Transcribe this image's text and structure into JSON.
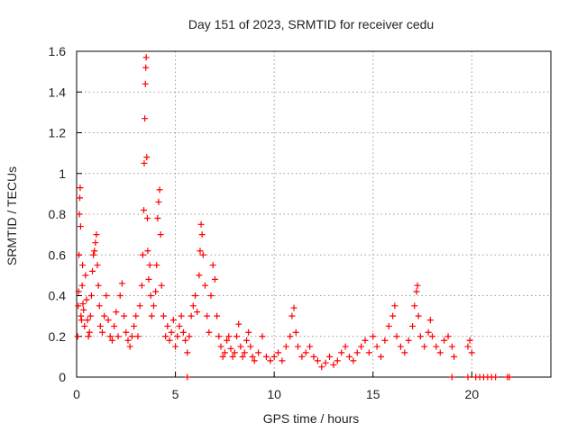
{
  "chart_data": {
    "type": "scatter",
    "title": "Day 151 of 2023, SRMTID for receiver cedu",
    "xlabel": "GPS time / hours",
    "ylabel": "SRMTID / TECUs",
    "xlim": [
      0,
      24
    ],
    "ylim": [
      0,
      1.6
    ],
    "xticks": [
      0,
      5,
      10,
      15,
      20
    ],
    "yticks": [
      0,
      0.2,
      0.4,
      0.6,
      0.8,
      1,
      1.2,
      1.4,
      1.6
    ],
    "xtick_labels": [
      "0",
      "5",
      "10",
      "15",
      "20"
    ],
    "ytick_labels": [
      "0",
      "0.2",
      "0.4",
      "0.6",
      "0.8",
      "1",
      "1.2",
      "1.4",
      "1.6"
    ],
    "grid": true,
    "marker": "+",
    "color": "#ff0000",
    "series": [
      {
        "name": "SRMTID",
        "points": [
          [
            0.05,
            0.2
          ],
          [
            0.08,
            0.35
          ],
          [
            0.1,
            0.42
          ],
          [
            0.12,
            0.6
          ],
          [
            0.14,
            0.8
          ],
          [
            0.16,
            0.88
          ],
          [
            0.18,
            0.93
          ],
          [
            0.2,
            0.74
          ],
          [
            0.22,
            0.3
          ],
          [
            0.25,
            0.28
          ],
          [
            0.28,
            0.45
          ],
          [
            0.3,
            0.55
          ],
          [
            0.32,
            0.36
          ],
          [
            0.35,
            0.33
          ],
          [
            0.4,
            0.25
          ],
          [
            0.45,
            0.5
          ],
          [
            0.5,
            0.38
          ],
          [
            0.55,
            0.28
          ],
          [
            0.6,
            0.2
          ],
          [
            0.65,
            0.22
          ],
          [
            0.7,
            0.3
          ],
          [
            0.75,
            0.4
          ],
          [
            0.8,
            0.52
          ],
          [
            0.85,
            0.6
          ],
          [
            0.9,
            0.62
          ],
          [
            0.95,
            0.66
          ],
          [
            1.0,
            0.7
          ],
          [
            1.05,
            0.55
          ],
          [
            1.1,
            0.45
          ],
          [
            1.15,
            0.35
          ],
          [
            1.2,
            0.25
          ],
          [
            1.3,
            0.22
          ],
          [
            1.4,
            0.3
          ],
          [
            1.5,
            0.4
          ],
          [
            1.6,
            0.28
          ],
          [
            1.7,
            0.2
          ],
          [
            1.8,
            0.18
          ],
          [
            1.9,
            0.25
          ],
          [
            2.0,
            0.32
          ],
          [
            2.1,
            0.2
          ],
          [
            2.2,
            0.4
          ],
          [
            2.3,
            0.46
          ],
          [
            2.4,
            0.3
          ],
          [
            2.5,
            0.22
          ],
          [
            2.6,
            0.18
          ],
          [
            2.7,
            0.15
          ],
          [
            2.8,
            0.2
          ],
          [
            2.9,
            0.25
          ],
          [
            3.0,
            0.3
          ],
          [
            3.1,
            0.2
          ],
          [
            3.2,
            0.35
          ],
          [
            3.3,
            0.45
          ],
          [
            3.35,
            0.6
          ],
          [
            3.4,
            0.82
          ],
          [
            3.42,
            1.05
          ],
          [
            3.45,
            1.27
          ],
          [
            3.48,
            1.44
          ],
          [
            3.5,
            1.52
          ],
          [
            3.52,
            1.57
          ],
          [
            3.55,
            1.08
          ],
          [
            3.58,
            0.78
          ],
          [
            3.6,
            0.62
          ],
          [
            3.65,
            0.48
          ],
          [
            3.7,
            0.55
          ],
          [
            3.75,
            0.4
          ],
          [
            3.8,
            0.3
          ],
          [
            3.9,
            0.35
          ],
          [
            4.0,
            0.42
          ],
          [
            4.05,
            0.55
          ],
          [
            4.1,
            0.78
          ],
          [
            4.15,
            0.86
          ],
          [
            4.2,
            0.92
          ],
          [
            4.25,
            0.7
          ],
          [
            4.3,
            0.45
          ],
          [
            4.4,
            0.3
          ],
          [
            4.5,
            0.2
          ],
          [
            4.6,
            0.25
          ],
          [
            4.7,
            0.18
          ],
          [
            4.8,
            0.22
          ],
          [
            4.9,
            0.28
          ],
          [
            5.0,
            0.15
          ],
          [
            5.1,
            0.2
          ],
          [
            5.2,
            0.25
          ],
          [
            5.3,
            0.3
          ],
          [
            5.4,
            0.22
          ],
          [
            5.5,
            0.18
          ],
          [
            5.6,
            0.12
          ],
          [
            5.7,
            0.2
          ],
          [
            5.8,
            0.3
          ],
          [
            5.9,
            0.35
          ],
          [
            6.0,
            0.4
          ],
          [
            6.1,
            0.32
          ],
          [
            6.2,
            0.5
          ],
          [
            6.25,
            0.62
          ],
          [
            6.3,
            0.75
          ],
          [
            6.35,
            0.7
          ],
          [
            6.4,
            0.6
          ],
          [
            6.5,
            0.45
          ],
          [
            6.6,
            0.3
          ],
          [
            6.7,
            0.22
          ],
          [
            6.8,
            0.4
          ],
          [
            6.9,
            0.55
          ],
          [
            7.0,
            0.48
          ],
          [
            7.1,
            0.3
          ],
          [
            7.2,
            0.2
          ],
          [
            7.3,
            0.15
          ],
          [
            7.4,
            0.1
          ],
          [
            7.5,
            0.12
          ],
          [
            7.6,
            0.18
          ],
          [
            7.7,
            0.2
          ],
          [
            7.8,
            0.14
          ],
          [
            7.9,
            0.1
          ],
          [
            8.0,
            0.12
          ],
          [
            8.1,
            0.2
          ],
          [
            8.2,
            0.26
          ],
          [
            8.3,
            0.15
          ],
          [
            8.4,
            0.1
          ],
          [
            8.5,
            0.12
          ],
          [
            8.6,
            0.18
          ],
          [
            8.7,
            0.22
          ],
          [
            8.8,
            0.15
          ],
          [
            8.9,
            0.1
          ],
          [
            9.0,
            0.08
          ],
          [
            9.2,
            0.12
          ],
          [
            9.4,
            0.2
          ],
          [
            9.6,
            0.1
          ],
          [
            9.8,
            0.08
          ],
          [
            10.0,
            0.1
          ],
          [
            10.2,
            0.12
          ],
          [
            10.4,
            0.08
          ],
          [
            10.6,
            0.15
          ],
          [
            10.8,
            0.2
          ],
          [
            10.9,
            0.3
          ],
          [
            11.0,
            0.34
          ],
          [
            11.1,
            0.22
          ],
          [
            11.2,
            0.15
          ],
          [
            11.4,
            0.1
          ],
          [
            11.6,
            0.12
          ],
          [
            11.8,
            0.15
          ],
          [
            12.0,
            0.1
          ],
          [
            12.2,
            0.08
          ],
          [
            12.4,
            0.05
          ],
          [
            12.6,
            0.07
          ],
          [
            12.8,
            0.1
          ],
          [
            13.0,
            0.06
          ],
          [
            13.2,
            0.08
          ],
          [
            13.4,
            0.12
          ],
          [
            13.6,
            0.15
          ],
          [
            13.8,
            0.1
          ],
          [
            14.0,
            0.08
          ],
          [
            14.2,
            0.12
          ],
          [
            14.4,
            0.15
          ],
          [
            14.6,
            0.18
          ],
          [
            14.8,
            0.12
          ],
          [
            15.0,
            0.2
          ],
          [
            15.2,
            0.15
          ],
          [
            15.4,
            0.1
          ],
          [
            15.6,
            0.18
          ],
          [
            15.8,
            0.25
          ],
          [
            16.0,
            0.3
          ],
          [
            16.1,
            0.35
          ],
          [
            16.2,
            0.2
          ],
          [
            16.4,
            0.15
          ],
          [
            16.6,
            0.12
          ],
          [
            16.8,
            0.18
          ],
          [
            17.0,
            0.25
          ],
          [
            17.1,
            0.35
          ],
          [
            17.2,
            0.42
          ],
          [
            17.25,
            0.45
          ],
          [
            17.3,
            0.3
          ],
          [
            17.4,
            0.2
          ],
          [
            17.6,
            0.15
          ],
          [
            17.8,
            0.22
          ],
          [
            17.9,
            0.28
          ],
          [
            18.0,
            0.2
          ],
          [
            18.2,
            0.15
          ],
          [
            18.4,
            0.12
          ],
          [
            18.6,
            0.18
          ],
          [
            18.8,
            0.2
          ],
          [
            19.0,
            0.15
          ],
          [
            19.1,
            0.1
          ],
          [
            19.8,
            0.15
          ],
          [
            19.9,
            0.18
          ],
          [
            20.0,
            0.12
          ],
          [
            5.6,
            0.0
          ],
          [
            19.0,
            0.0
          ],
          [
            19.8,
            0.0
          ],
          [
            20.2,
            0.0
          ],
          [
            20.4,
            0.0
          ],
          [
            20.6,
            0.0
          ],
          [
            20.8,
            0.0
          ],
          [
            21.0,
            0.0
          ],
          [
            21.2,
            0.0
          ],
          [
            21.8,
            0.0
          ],
          [
            21.9,
            0.0
          ]
        ]
      }
    ]
  }
}
